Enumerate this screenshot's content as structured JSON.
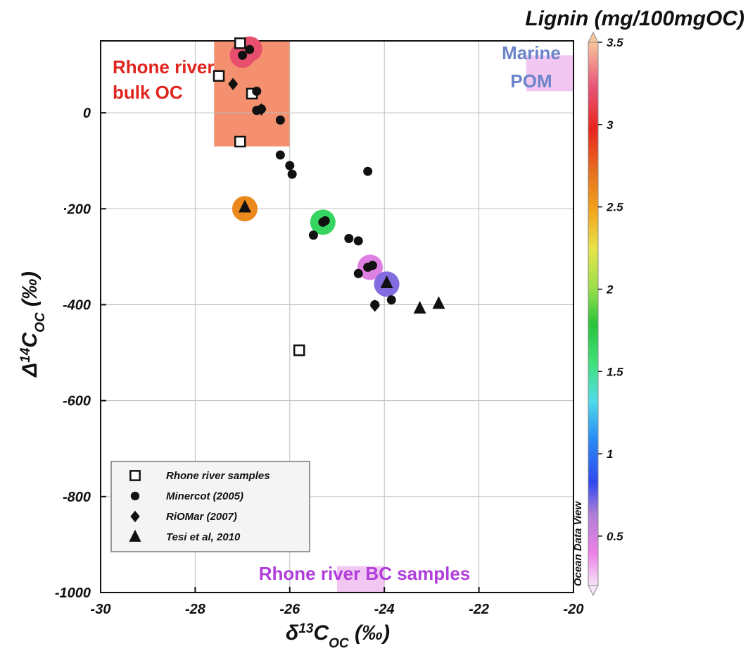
{
  "chart_data": {
    "type": "scatter",
    "xlabel": "δ13C_OC (‰)",
    "ylabel": "Δ14C_OC (‰)",
    "xlim": [
      -30,
      -20
    ],
    "ylim": [
      -1000,
      150
    ],
    "x_ticks": [
      -30,
      -28,
      -26,
      -24,
      -22,
      -20
    ],
    "y_ticks": [
      -1000,
      -800,
      -600,
      -400,
      -200,
      0
    ],
    "y_tick_labels": [
      "-1000",
      "-800",
      "-600",
      "-400",
      "·200",
      "0"
    ],
    "grid": true,
    "legend_position": "bottom-left",
    "colorbar": {
      "title": "Lignin (mg/100mgOC)",
      "range": [
        0.2,
        3.5
      ],
      "ticks": [
        "3.5",
        "3",
        "2.5",
        "2",
        "1.5",
        "1",
        "0.5"
      ],
      "tick_values": [
        3.5,
        3,
        2.5,
        2,
        1.5,
        1,
        0.5
      ],
      "credit": "Ocean Data View"
    },
    "regions": [
      {
        "label_lines": [
          "Rhone river",
          "bulk OC"
        ],
        "x": [
          -27.6,
          -26.0
        ],
        "y": [
          -70,
          150
        ],
        "color": "#f4906f",
        "label_color": "#e0241e"
      },
      {
        "label_lines": [
          "Marine",
          "POM"
        ],
        "x": [
          -21.0,
          -20.0
        ],
        "y": [
          45,
          120
        ],
        "color": "#f2c8f2",
        "label_color": "#6b84c9"
      },
      {
        "label_lines": [
          "Rhone river BC samples"
        ],
        "x": [
          -25.0,
          -24.0
        ],
        "y": [
          -1000,
          -945
        ],
        "color": "#f2c8f2",
        "label_color": "#b13ddb"
      }
    ],
    "series": [
      {
        "name": "Rhone river samples",
        "marker": "open-square",
        "points": [
          [
            -27.05,
            145
          ],
          [
            -27.5,
            77
          ],
          [
            -26.8,
            40
          ],
          [
            -27.05,
            -60
          ],
          [
            -25.8,
            -495
          ]
        ]
      },
      {
        "name": "Minercot (2005)",
        "marker": "circle",
        "points": [
          [
            -27.0,
            120
          ],
          [
            -26.85,
            132
          ],
          [
            -26.7,
            45
          ],
          [
            -26.7,
            5
          ],
          [
            -26.6,
            8
          ],
          [
            -26.2,
            -15
          ],
          [
            -26.2,
            -88
          ],
          [
            -26.0,
            -110
          ],
          [
            -25.95,
            -128
          ],
          [
            -25.5,
            -255
          ],
          [
            -25.3,
            -228
          ],
          [
            -25.25,
            -225
          ],
          [
            -24.75,
            -262
          ],
          [
            -24.55,
            -267
          ],
          [
            -24.35,
            -122
          ],
          [
            -24.35,
            -322
          ],
          [
            -24.25,
            -318
          ],
          [
            -24.55,
            -335
          ],
          [
            -24.2,
            -400
          ],
          [
            -23.85,
            -390
          ]
        ]
      },
      {
        "name": "RiOMar (2007)",
        "marker": "diamond",
        "points": [
          [
            -27.2,
            60
          ],
          [
            -26.6,
            7
          ],
          [
            -24.2,
            -402
          ]
        ]
      },
      {
        "name": "Tesi et al, 2010",
        "marker": "triangle",
        "points": [
          [
            -26.95,
            -197
          ],
          [
            -23.95,
            -355
          ],
          [
            -23.25,
            -408
          ],
          [
            -22.85,
            -398
          ]
        ]
      }
    ],
    "lignin_highlights": [
      {
        "x": -27.0,
        "y": 120,
        "lignin": 3.2
      },
      {
        "x": -26.85,
        "y": 133,
        "lignin": 3.2
      },
      {
        "x": -26.95,
        "y": -200,
        "lignin": 2.6
      },
      {
        "x": -25.3,
        "y": -228,
        "lignin": 1.65
      },
      {
        "x": -24.3,
        "y": -322,
        "lignin": 0.45
      },
      {
        "x": -23.95,
        "y": -357,
        "lignin": 0.7
      }
    ]
  }
}
